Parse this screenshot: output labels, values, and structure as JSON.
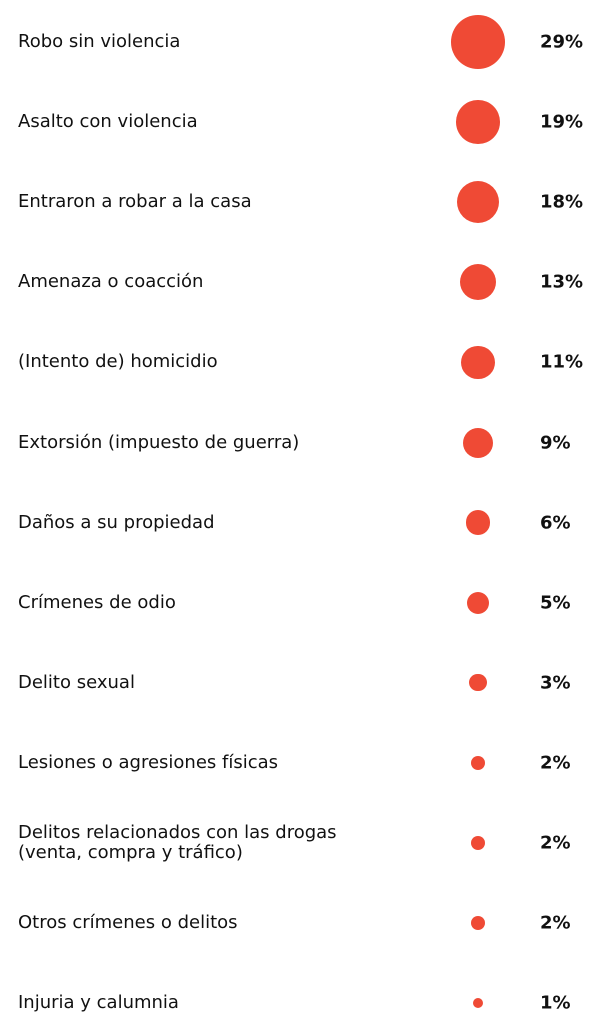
{
  "chart_data": {
    "type": "bubble-list",
    "categories": [
      "Robo sin violencia",
      "Asalto con violencia",
      "Entraron a robar a la casa",
      "Amenaza o coacción",
      "(Intento de) homicidio",
      "Extorsión (impuesto de guerra)",
      "Daños a su propiedad",
      "Crímenes de odio",
      "Delito sexual",
      "Lesiones o agresiones físicas",
      "Delitos relacionados con las drogas\n(venta, compra y tráfico)",
      "Otros crímenes o delitos",
      "Injuria y calumnia"
    ],
    "values": [
      29,
      19,
      18,
      13,
      11,
      9,
      6,
      5,
      3,
      2,
      2,
      2,
      1
    ],
    "value_labels": [
      "29%",
      "19%",
      "18%",
      "13%",
      "11%",
      "9%",
      "6%",
      "5%",
      "3%",
      "2%",
      "2%",
      "2%",
      "1%"
    ],
    "color": "#ef4a35"
  }
}
